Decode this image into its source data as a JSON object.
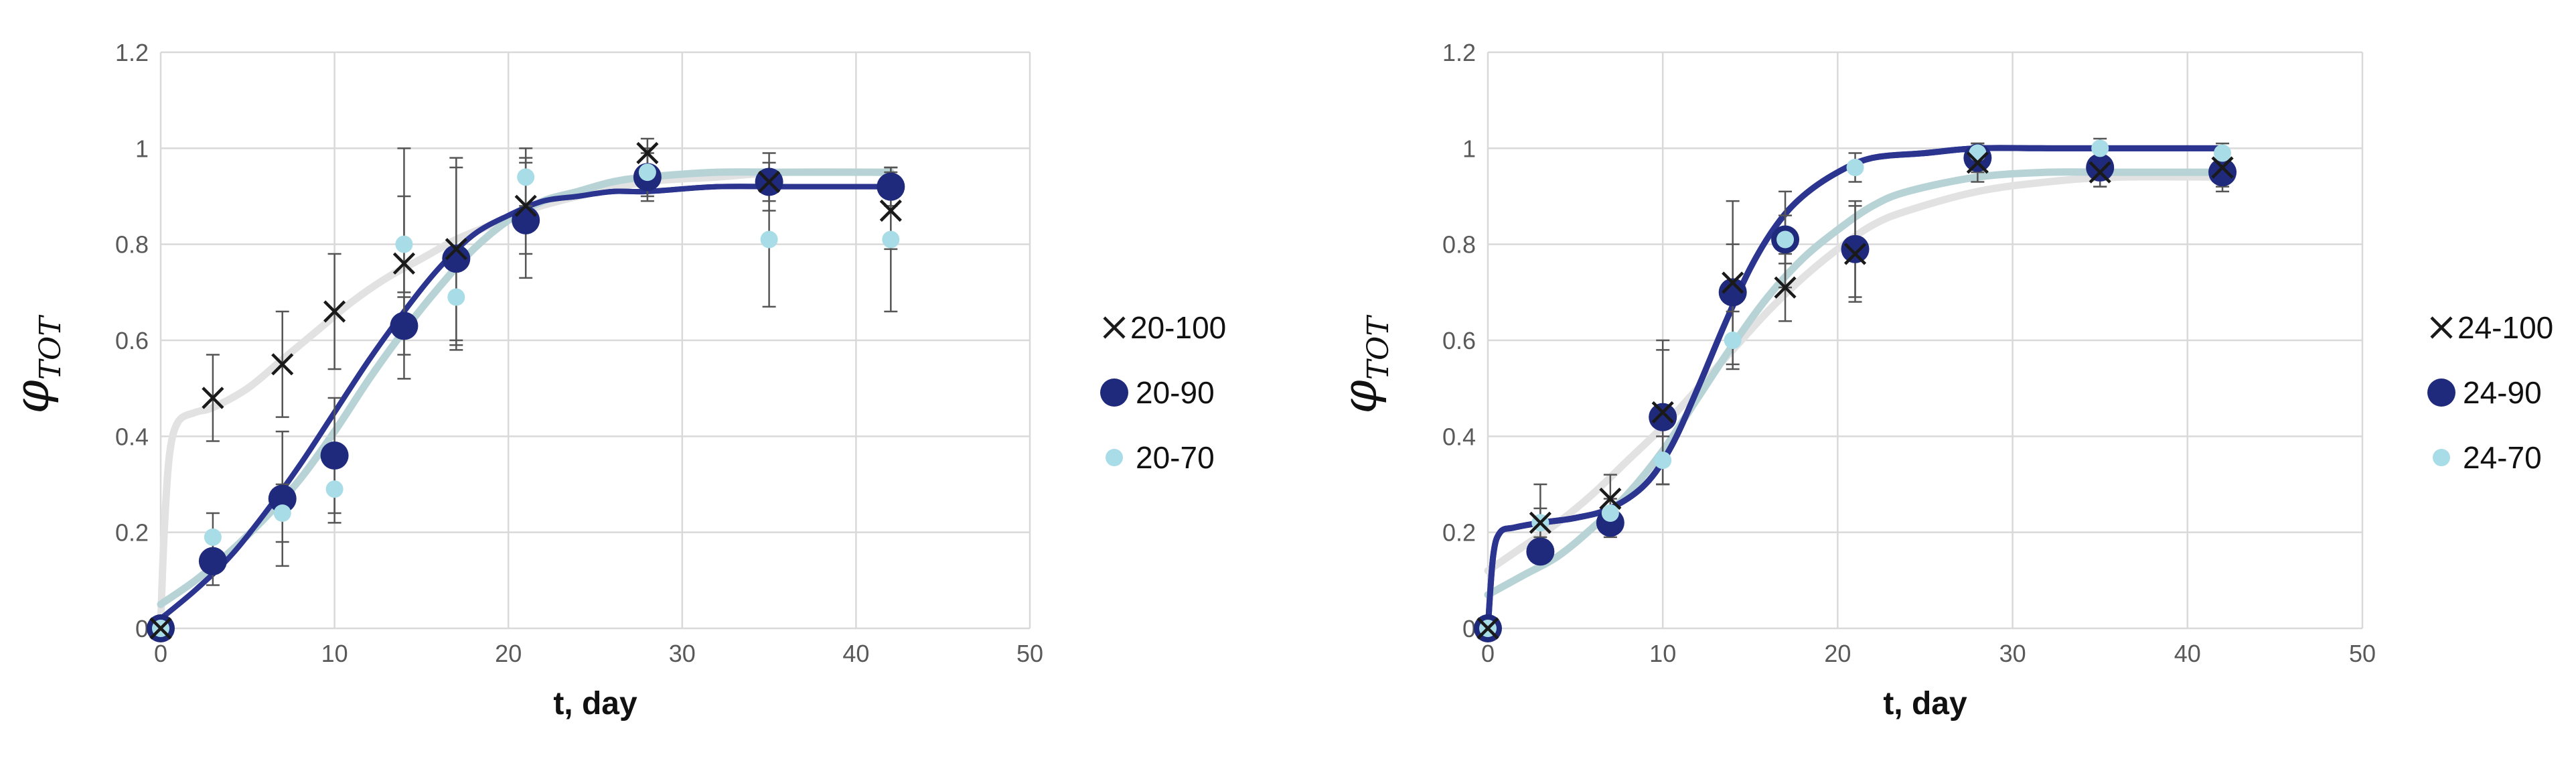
{
  "chart_data": [
    {
      "type": "scatter",
      "title": "",
      "xlabel": "t, day",
      "ylabel": "φ",
      "ylabel_sub": "TOT",
      "xlim": [
        0,
        50
      ],
      "ylim": [
        0,
        1.2
      ],
      "xticks": [
        "0",
        "10",
        "20",
        "30",
        "40",
        "50"
      ],
      "yticks": [
        "0",
        "0.2",
        "0.4",
        "0.6",
        "0.8",
        "1",
        "1.2"
      ],
      "grid": true,
      "legend_position": "right",
      "series": [
        {
          "name": "20-100",
          "marker": "x",
          "color": "#1a1a1a",
          "fit_color": "#e2e2e2",
          "x": [
            0,
            3,
            7,
            10,
            14,
            17,
            21,
            28,
            35,
            42
          ],
          "y": [
            0,
            0.48,
            0.55,
            0.66,
            0.76,
            0.79,
            0.88,
            0.99,
            0.93,
            0.87
          ],
          "err": [
            0.02,
            0.09,
            0.11,
            0.12,
            0.24,
            0.19,
            0.1,
            0.03,
            0.06,
            0.08
          ],
          "fit_x": [
            0,
            0.2,
            0.5,
            1,
            2,
            3,
            5,
            7,
            9,
            11,
            13,
            15,
            17,
            19,
            21,
            24,
            28,
            32,
            36,
            42
          ],
          "fit_y": [
            0.01,
            0.2,
            0.36,
            0.43,
            0.45,
            0.46,
            0.5,
            0.56,
            0.62,
            0.68,
            0.73,
            0.77,
            0.81,
            0.84,
            0.87,
            0.9,
            0.93,
            0.94,
            0.95,
            0.95
          ]
        },
        {
          "name": "20-90",
          "marker": "circle-large",
          "color": "#1f2a7c",
          "fit_color": "#2b3590",
          "x": [
            0,
            3,
            7,
            10,
            14,
            17,
            21,
            28,
            35,
            42
          ],
          "y": [
            0,
            0.14,
            0.27,
            0.36,
            0.63,
            0.77,
            0.85,
            0.94,
            0.93,
            0.92
          ],
          "err": [
            0.01,
            0.05,
            0.14,
            0.12,
            0.06,
            0.19,
            0.12,
            0.05,
            0.04,
            0.04
          ],
          "fit_x": [
            0,
            2,
            4,
            6,
            8,
            10,
            12,
            14,
            16,
            18,
            20,
            22,
            24,
            26,
            28,
            32,
            36,
            42
          ],
          "fit_y": [
            0.02,
            0.08,
            0.15,
            0.24,
            0.34,
            0.45,
            0.56,
            0.66,
            0.75,
            0.82,
            0.86,
            0.89,
            0.9,
            0.91,
            0.91,
            0.92,
            0.92,
            0.92
          ]
        },
        {
          "name": "20-70",
          "marker": "circle-small",
          "color": "#a8dce6",
          "fit_color": "#b7d3d6",
          "x": [
            0,
            3,
            7,
            10,
            14,
            17,
            21,
            28,
            35,
            42
          ],
          "y": [
            0,
            0.19,
            0.24,
            0.29,
            0.8,
            0.69,
            0.94,
            0.95,
            0.81,
            0.81
          ],
          "err": [
            0.01,
            0.05,
            0.06,
            0.07,
            0.1,
            0.1,
            0.06,
            0.05,
            0.14,
            0.15
          ],
          "fit_x": [
            0,
            2,
            4,
            6,
            8,
            10,
            12,
            14,
            16,
            18,
            20,
            22,
            24,
            26,
            28,
            32,
            36,
            42
          ],
          "fit_y": [
            0.05,
            0.1,
            0.16,
            0.23,
            0.31,
            0.41,
            0.52,
            0.62,
            0.71,
            0.79,
            0.85,
            0.89,
            0.91,
            0.93,
            0.94,
            0.95,
            0.95,
            0.95
          ]
        }
      ]
    },
    {
      "type": "scatter",
      "title": "",
      "xlabel": "t, day",
      "ylabel": "φ",
      "ylabel_sub": "TOT",
      "xlim": [
        0,
        50
      ],
      "ylim": [
        0,
        1.2
      ],
      "xticks": [
        "0",
        "10",
        "20",
        "30",
        "40",
        "50"
      ],
      "yticks": [
        "0",
        "0.2",
        "0.4",
        "0.6",
        "0.8",
        "1",
        "1.2"
      ],
      "grid": true,
      "legend_position": "right",
      "series": [
        {
          "name": "24-100",
          "marker": "x",
          "color": "#1a1a1a",
          "fit_color": "#e2e2e2",
          "x": [
            0,
            3,
            7,
            10,
            14,
            17,
            21,
            28,
            35,
            42
          ],
          "y": [
            0,
            0.22,
            0.27,
            0.45,
            0.72,
            0.71,
            0.78,
            0.97,
            0.95,
            0.96
          ],
          "err": [
            0.01,
            0.08,
            0.05,
            0.15,
            0.17,
            0.07,
            0.1,
            0.04,
            0.03,
            0.04
          ],
          "fit_x": [
            0,
            2,
            4,
            6,
            8,
            10,
            12,
            14,
            16,
            18,
            20,
            22,
            24,
            28,
            32,
            36,
            42
          ],
          "fit_y": [
            0.12,
            0.17,
            0.22,
            0.28,
            0.35,
            0.42,
            0.5,
            0.58,
            0.66,
            0.73,
            0.79,
            0.84,
            0.87,
            0.91,
            0.93,
            0.94,
            0.94
          ]
        },
        {
          "name": "24-90",
          "marker": "circle-large",
          "color": "#1f2a7c",
          "fit_color": "#2b3590",
          "x": [
            0,
            3,
            7,
            10,
            14,
            17,
            21,
            28,
            35,
            42
          ],
          "y": [
            0,
            0.16,
            0.22,
            0.44,
            0.7,
            0.81,
            0.79,
            0.98,
            0.96,
            0.95
          ],
          "err": [
            0.01,
            0.02,
            0.03,
            0.14,
            0.1,
            0.1,
            0.1,
            0.03,
            0.04,
            0.04
          ],
          "fit_x": [
            0,
            0.3,
            0.7,
            1.5,
            3,
            5,
            7,
            9,
            10.5,
            12,
            13.5,
            15,
            16.5,
            18,
            20,
            22,
            25,
            28,
            32,
            36,
            42
          ],
          "fit_y": [
            0.0,
            0.15,
            0.2,
            0.21,
            0.22,
            0.23,
            0.25,
            0.3,
            0.38,
            0.5,
            0.63,
            0.75,
            0.84,
            0.9,
            0.95,
            0.98,
            0.99,
            1.0,
            1.0,
            1.0,
            1.0
          ],
          "fit_width": 9
        },
        {
          "name": "24-70",
          "marker": "circle-small",
          "color": "#a8dce6",
          "fit_color": "#b7d3d6",
          "x": [
            0,
            3,
            7,
            10,
            14,
            17,
            21,
            28,
            35,
            42
          ],
          "y": [
            0,
            0.22,
            0.24,
            0.35,
            0.6,
            0.81,
            0.96,
            0.99,
            1.0,
            0.99
          ],
          "err": [
            0.01,
            0.03,
            0.03,
            0.05,
            0.06,
            0.05,
            0.03,
            0.02,
            0.02,
            0.02
          ],
          "fit_x": [
            0,
            2,
            4,
            6,
            8,
            10,
            12,
            14,
            16,
            18,
            20,
            22,
            24,
            28,
            32,
            36,
            42
          ],
          "fit_y": [
            0.07,
            0.11,
            0.15,
            0.21,
            0.28,
            0.37,
            0.48,
            0.59,
            0.69,
            0.77,
            0.83,
            0.88,
            0.91,
            0.94,
            0.95,
            0.95,
            0.95
          ]
        }
      ]
    }
  ]
}
